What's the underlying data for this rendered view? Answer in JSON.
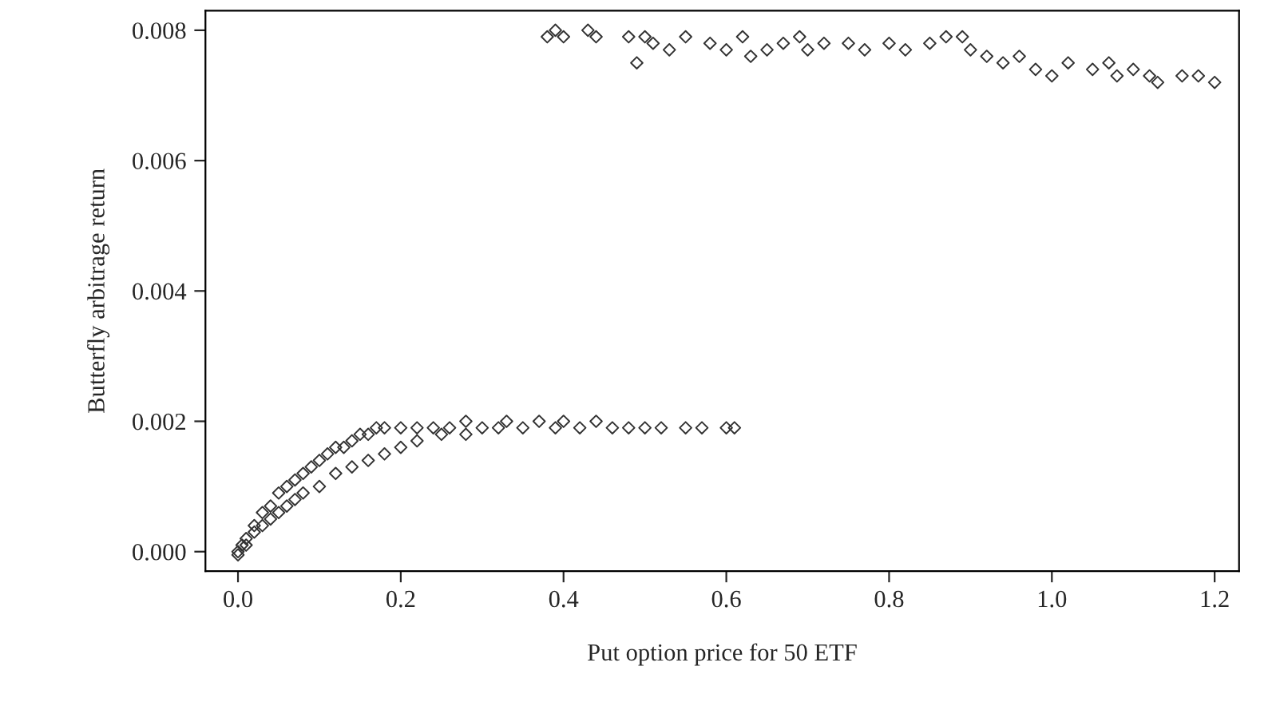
{
  "chart_data": {
    "type": "scatter",
    "xlabel": "Put option price for 50 ETF",
    "ylabel": "Butterfly arbitrage return",
    "marker": "diamond",
    "xlim": [
      -0.04,
      1.23
    ],
    "ylim": [
      -0.0003,
      0.0083
    ],
    "xticks": [
      {
        "value": 0,
        "label": "0.0"
      },
      {
        "value": 0.2,
        "label": "0.2"
      },
      {
        "value": 0.4,
        "label": "0.4"
      },
      {
        "value": 0.6,
        "label": "0.6"
      },
      {
        "value": 0.8,
        "label": "0.8"
      },
      {
        "value": 1,
        "label": "1.0"
      },
      {
        "value": 1.2,
        "label": "1.2"
      }
    ],
    "yticks": [
      {
        "value": 0,
        "label": "0.000"
      },
      {
        "value": 0.002,
        "label": "0.002"
      },
      {
        "value": 0.004,
        "label": "0.004"
      },
      {
        "value": 0.006,
        "label": "0.006"
      },
      {
        "value": 0.008,
        "label": "0.008"
      }
    ],
    "series": [
      {
        "color": "#333333",
        "x": [
          0.0,
          0.005,
          0.01,
          0.02,
          0.02,
          0.03,
          0.03,
          0.04,
          0.04,
          0.05,
          0.05,
          0.06,
          0.06,
          0.07,
          0.07,
          0.08,
          0.08,
          0.09,
          0.1,
          0.1,
          0.11,
          0.12,
          0.12,
          0.13,
          0.14,
          0.14,
          0.15,
          0.16,
          0.16,
          0.17,
          0.18,
          0.18,
          0.2,
          0.2,
          0.22,
          0.22,
          0.24,
          0.25,
          0.26,
          0.28,
          0.28,
          0.3,
          0.32,
          0.33,
          0.35,
          0.37,
          0.39,
          0.4,
          0.42,
          0.44,
          0.46,
          0.48,
          0.5,
          0.52,
          0.55,
          0.57,
          0.6,
          0.61,
          0.0,
          0.01,
          0.38,
          0.39,
          0.4,
          0.43,
          0.44,
          0.48,
          0.49,
          0.5,
          0.51,
          0.53,
          0.55,
          0.58,
          0.6,
          0.62,
          0.63,
          0.65,
          0.67,
          0.69,
          0.7,
          0.72,
          0.75,
          0.77,
          0.8,
          0.82,
          0.85,
          0.87,
          0.89,
          0.9,
          0.92,
          0.94,
          0.96,
          0.98,
          1.0,
          1.02,
          1.05,
          1.07,
          1.08,
          1.1,
          1.12,
          1.13,
          1.16,
          1.18,
          1.2
        ],
        "values": [
          0.0,
          0.0001,
          0.0002,
          0.0004,
          0.0003,
          0.0006,
          0.0004,
          0.0007,
          0.0005,
          0.0009,
          0.0006,
          0.001,
          0.0007,
          0.0011,
          0.0008,
          0.0012,
          0.0009,
          0.0013,
          0.0014,
          0.001,
          0.0015,
          0.0016,
          0.0012,
          0.0016,
          0.0017,
          0.0013,
          0.0018,
          0.0018,
          0.0014,
          0.0019,
          0.0019,
          0.0015,
          0.0019,
          0.0016,
          0.0019,
          0.0017,
          0.0019,
          0.0018,
          0.0019,
          0.0018,
          0.002,
          0.0019,
          0.0019,
          0.002,
          0.0019,
          0.002,
          0.0019,
          0.002,
          0.0019,
          0.002,
          0.0019,
          0.0019,
          0.0019,
          0.0019,
          0.0019,
          0.0019,
          0.0019,
          0.0019,
          -5e-05,
          0.0001,
          0.0079,
          0.008,
          0.0079,
          0.008,
          0.0079,
          0.0079,
          0.0075,
          0.0079,
          0.0078,
          0.0077,
          0.0079,
          0.0078,
          0.0077,
          0.0079,
          0.0076,
          0.0077,
          0.0078,
          0.0079,
          0.0077,
          0.0078,
          0.0078,
          0.0077,
          0.0078,
          0.0077,
          0.0078,
          0.0079,
          0.0079,
          0.0077,
          0.0076,
          0.0075,
          0.0076,
          0.0074,
          0.0073,
          0.0075,
          0.0074,
          0.0075,
          0.0073,
          0.0074,
          0.0073,
          0.0072,
          0.0073,
          0.0073,
          0.0072
        ]
      }
    ]
  }
}
